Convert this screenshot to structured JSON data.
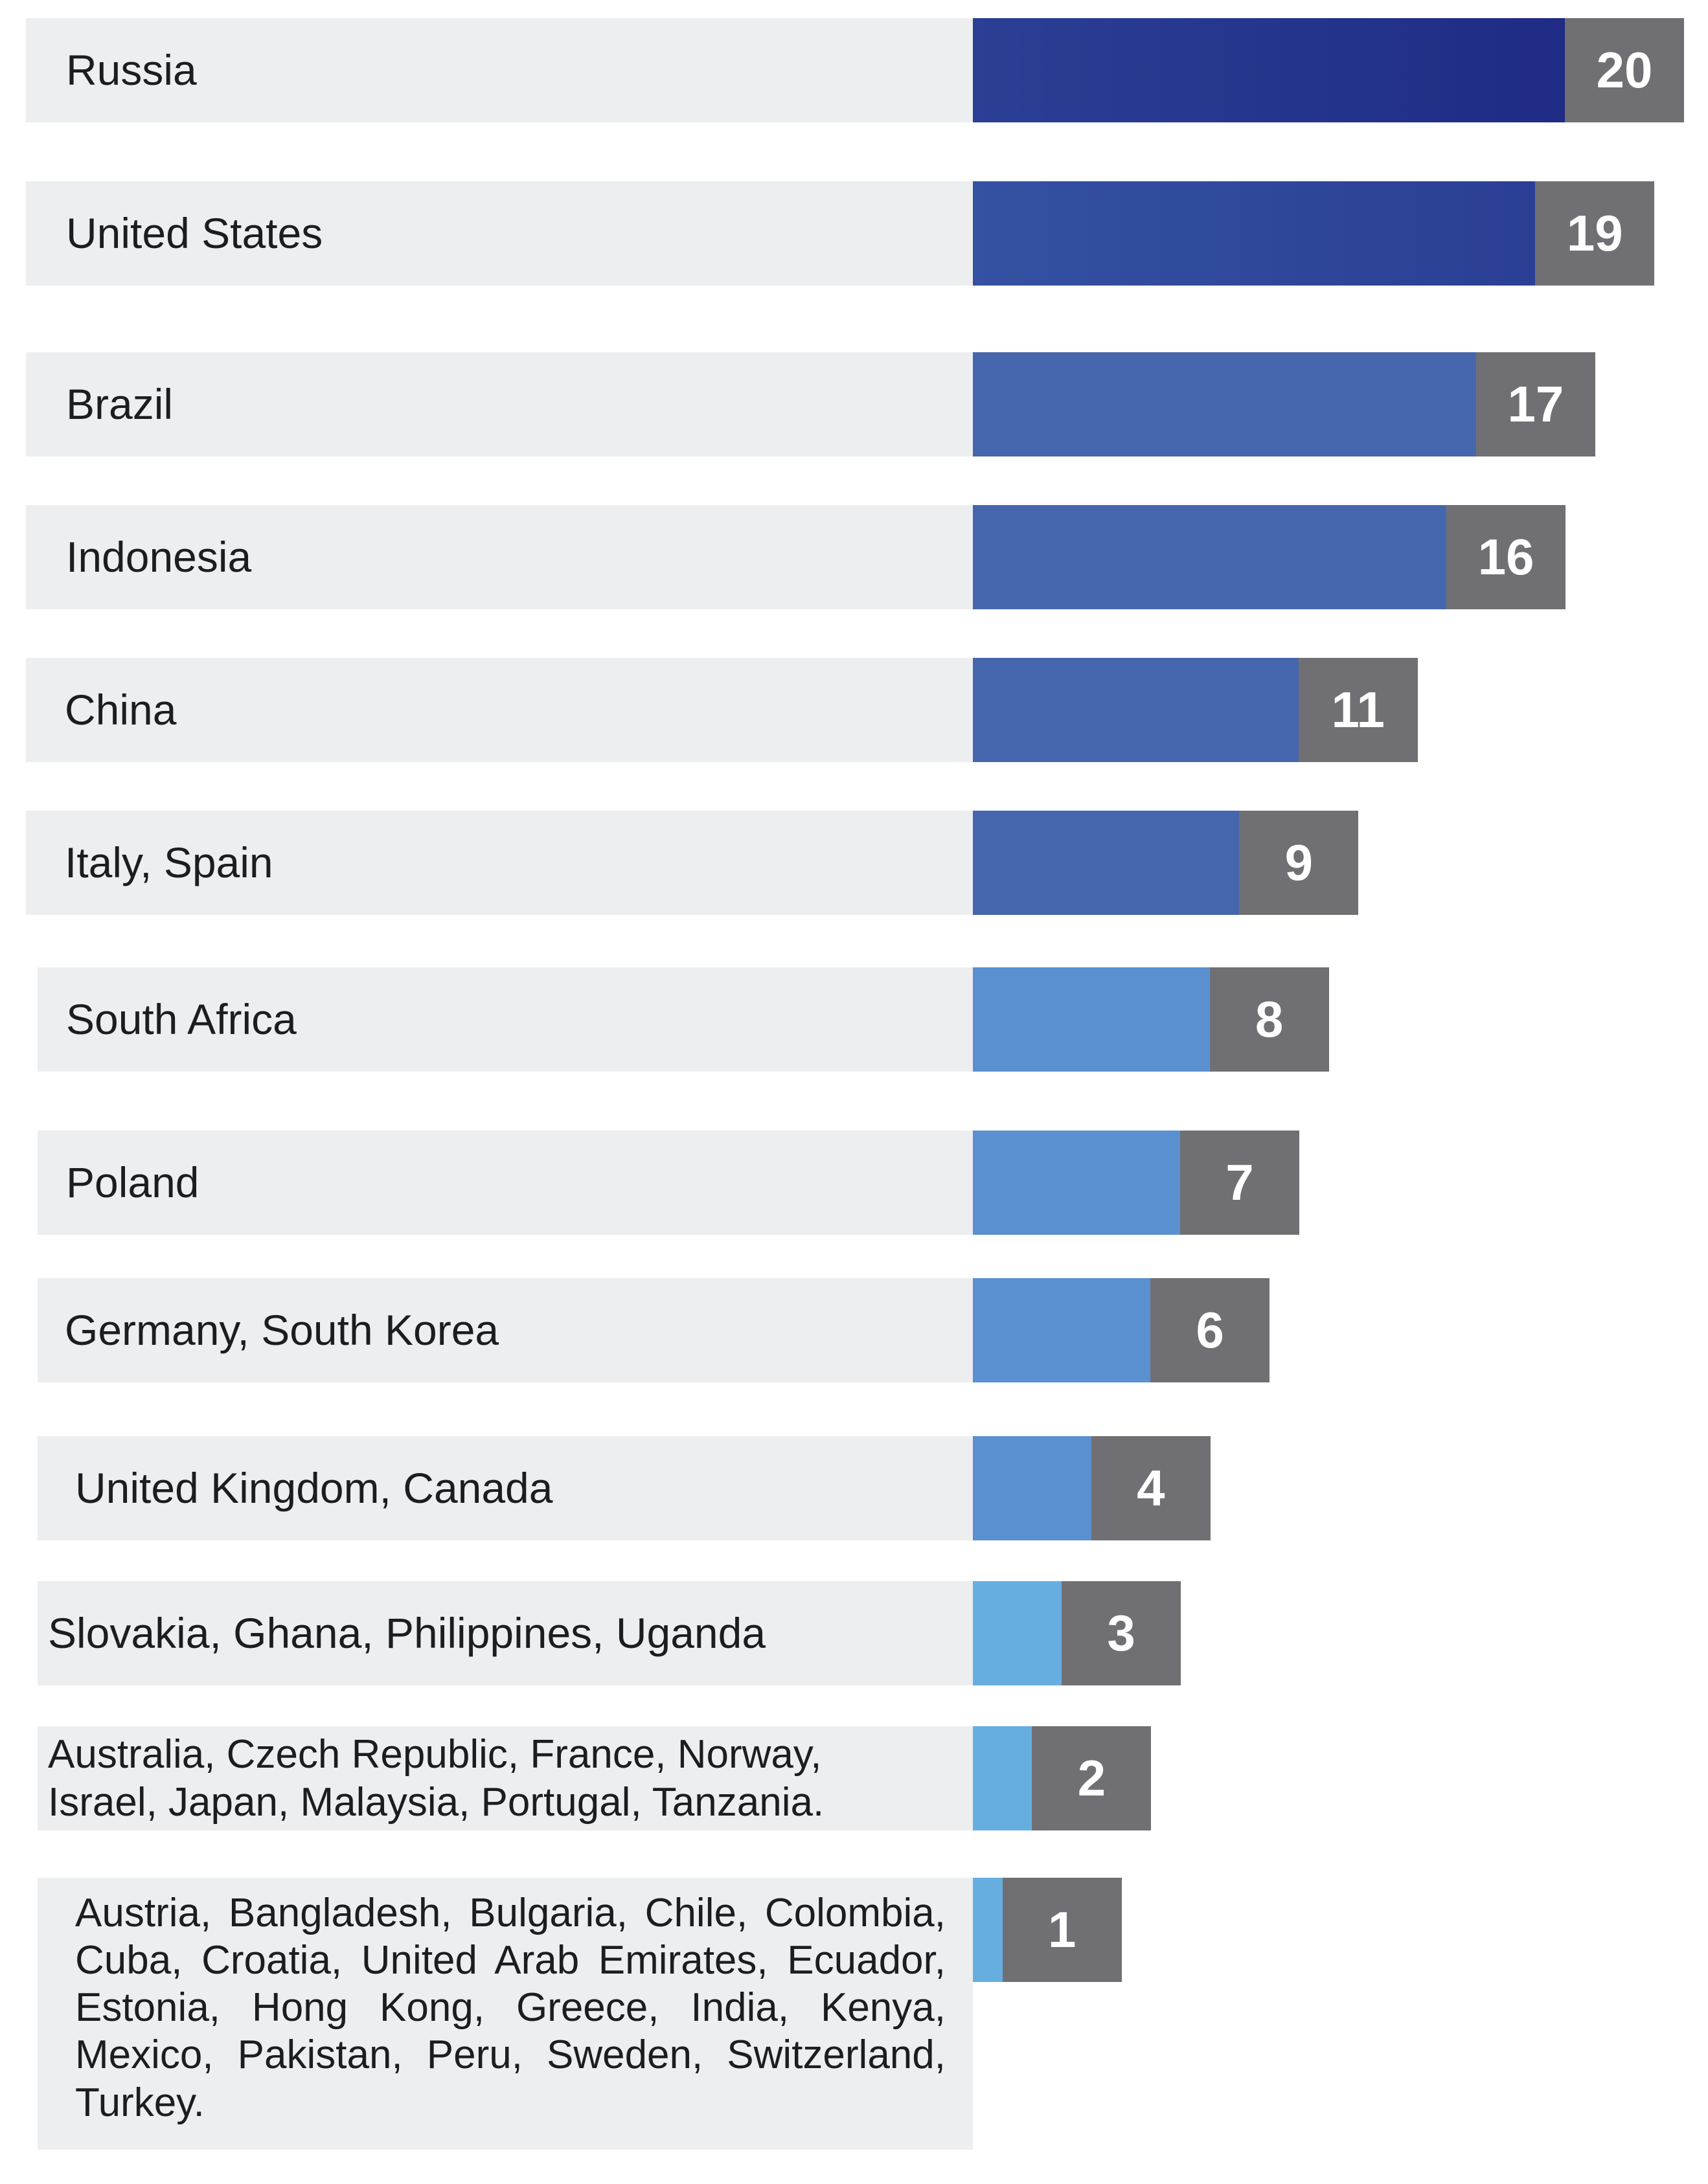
{
  "chart_data": {
    "type": "bar",
    "orientation": "horizontal",
    "title": "",
    "xlabel": "",
    "ylabel": "",
    "xlim": [
      0,
      20
    ],
    "legend": "none",
    "grid": false,
    "categories": [
      "Russia",
      "United States",
      "Brazil",
      "Indonesia",
      "China",
      "Italy, Spain",
      "South Africa",
      "Poland",
      "Germany, South Korea",
      "United Kingdom, Canada",
      "Slovakia, Ghana, Philippines, Uganda",
      "Australia, Czech Republic, France, Norway, Israel, Japan, Malaysia, Portugal, Tanzania.",
      "Austria, Bangladesh, Bulgaria, Chile, Colombia, Cuba, Croatia, United Arab Emirates, Ecuador, Estonia, Hong Kong, Greece, India, Kenya, Mexico, Pakistan, Peru, Sweden,  Switzerland, Turkey."
    ],
    "values": [
      20,
      19,
      17,
      16,
      11,
      9,
      8,
      7,
      6,
      4,
      3,
      2,
      1
    ],
    "value_labels": [
      "20",
      "19",
      "17",
      "16",
      "11",
      "9",
      "8",
      "7",
      "6",
      "4",
      "3",
      "2",
      "1"
    ]
  },
  "colors": {
    "label_panel": "#edeef0",
    "value_box": "#707074",
    "bar_top": "#1f2b85",
    "bar_mid": "#4566ad",
    "bar_low": "#5a90cf",
    "bar_light": "#66aee0"
  }
}
